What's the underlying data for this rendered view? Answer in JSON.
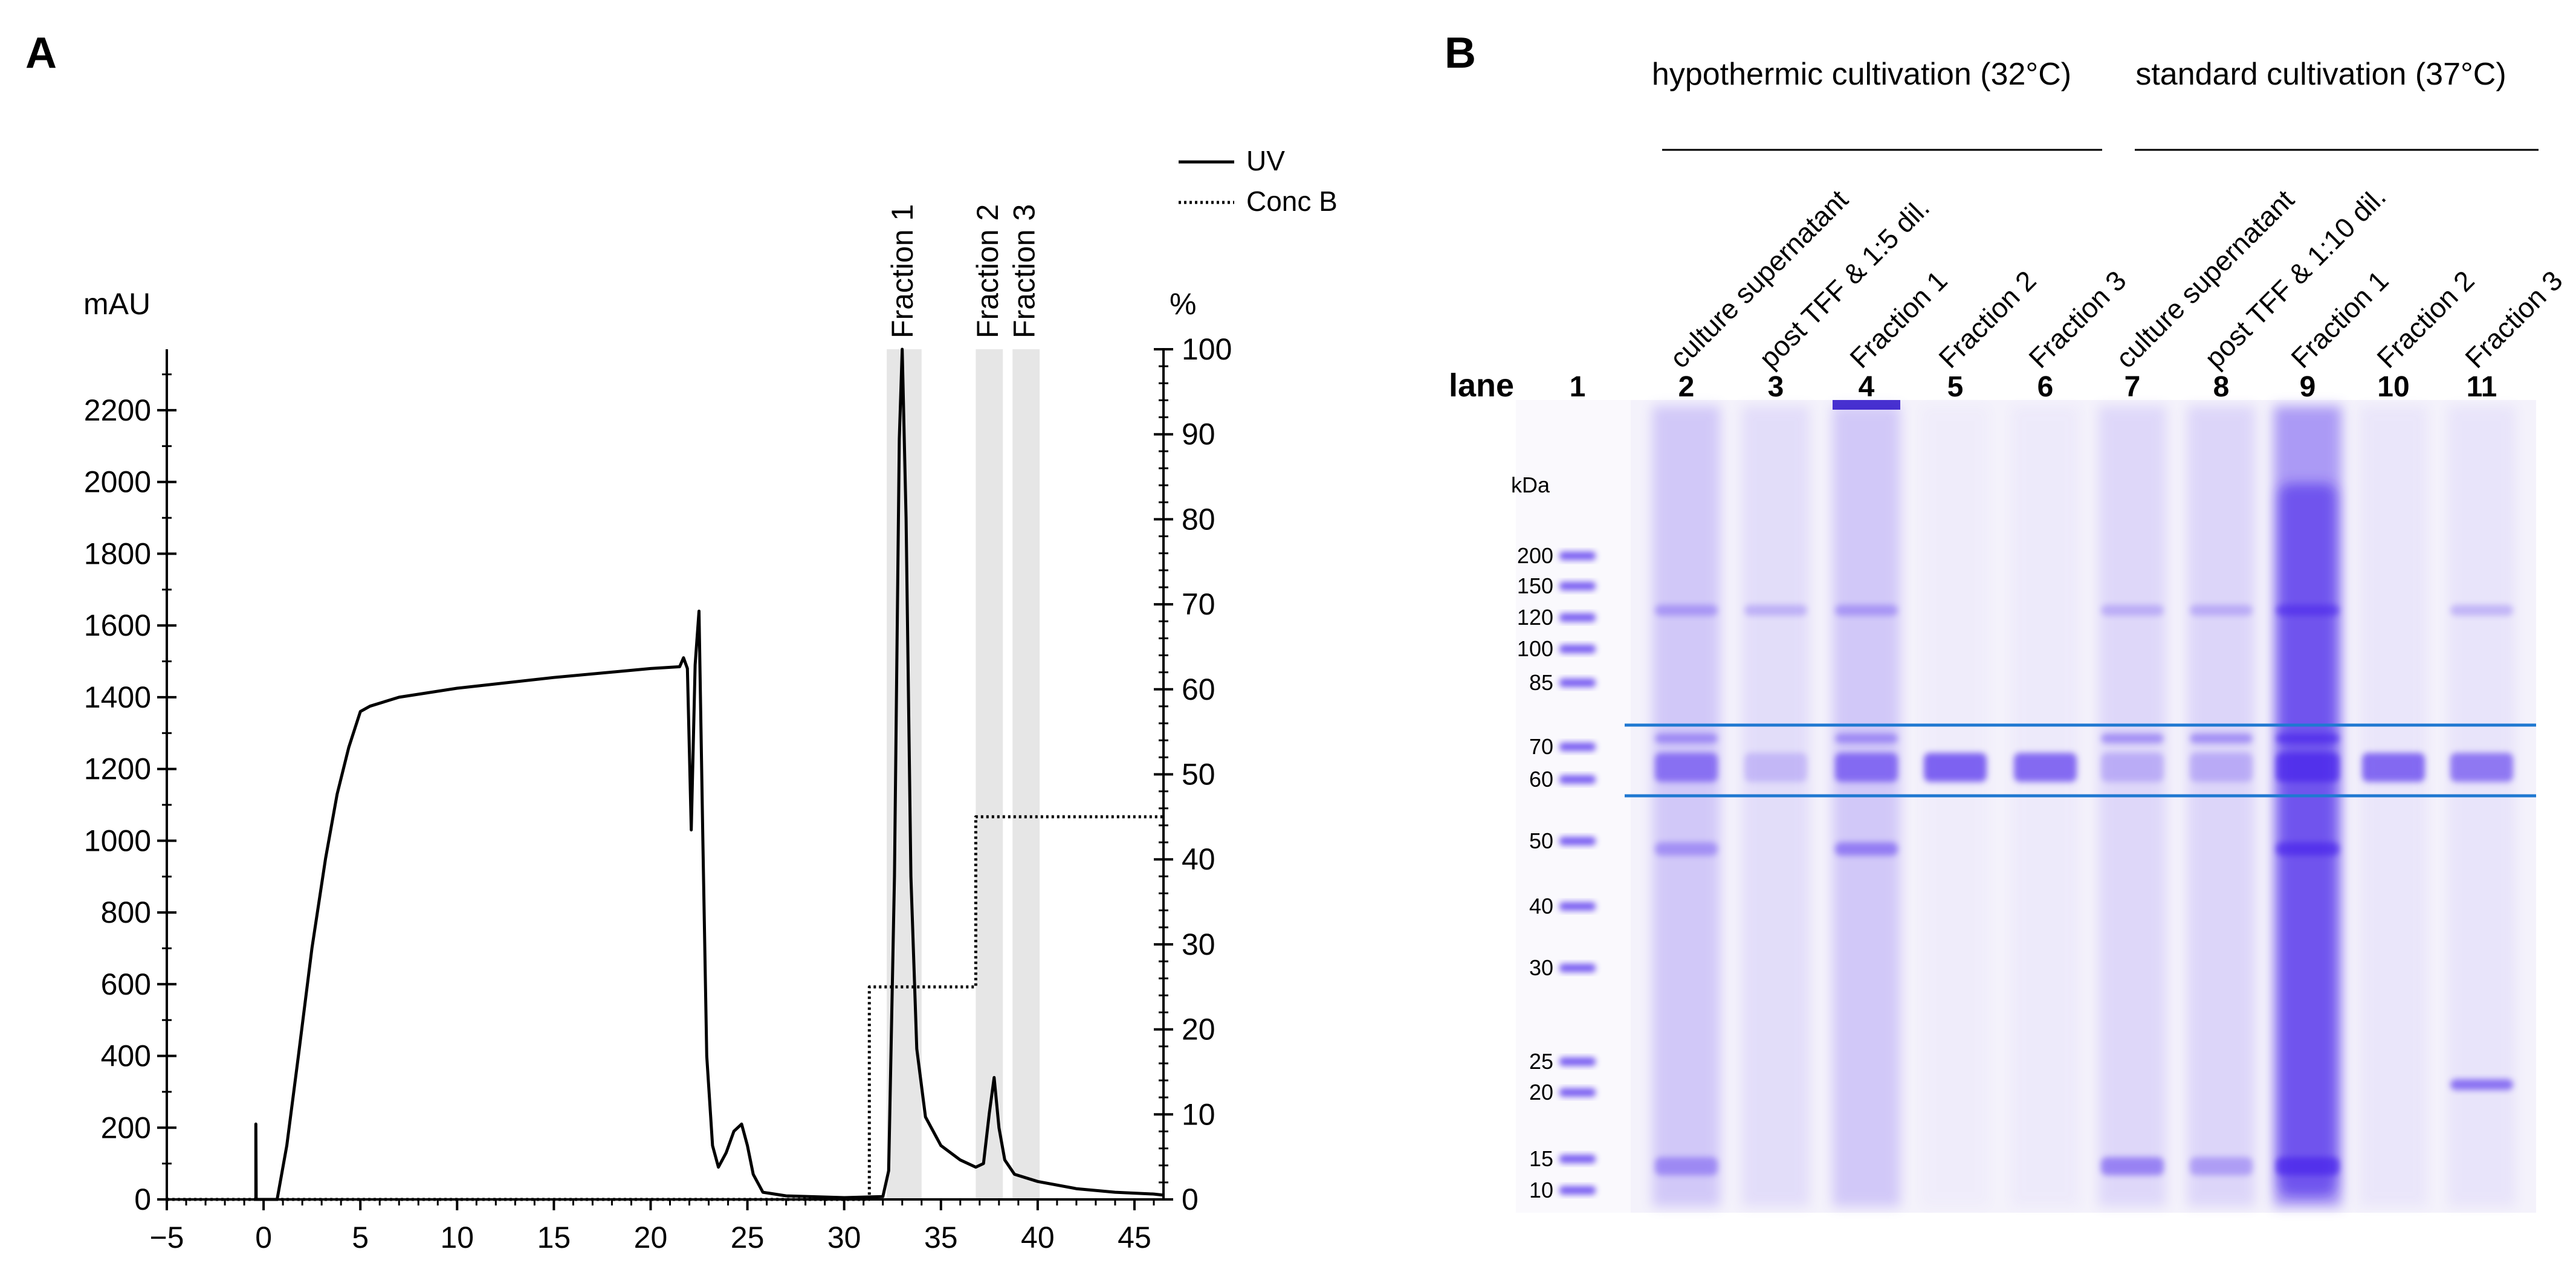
{
  "panel_a": {
    "label": "A",
    "y_left_unit": "mAU",
    "y_right_unit": "%",
    "legend": [
      "UV",
      "Conc B"
    ],
    "fractions": [
      {
        "label": "Fraction 1",
        "x_start": 32.2,
        "x_end": 34.0
      },
      {
        "label": "Fraction 2",
        "x_start": 36.8,
        "x_end": 38.2
      },
      {
        "label": "Fraction 3",
        "x_start": 38.7,
        "x_end": 40.1
      }
    ]
  },
  "chart_data": {
    "type": "line",
    "title": "",
    "xlabel": "",
    "ylabel": "mAU",
    "y2label": "%",
    "xlim": [
      -5,
      46.5
    ],
    "ylim": [
      0,
      2370
    ],
    "y2lim": [
      0,
      100
    ],
    "x_ticks": [
      -5,
      0,
      5,
      10,
      15,
      20,
      25,
      30,
      35,
      40,
      45
    ],
    "x_tick_labels": [
      "−5",
      "0",
      "5",
      "10",
      "15",
      "20",
      "25",
      "30",
      "35",
      "40",
      "45"
    ],
    "y_ticks": [
      0,
      200,
      400,
      600,
      800,
      1000,
      1200,
      1400,
      1600,
      1800,
      2000,
      2200
    ],
    "y2_ticks": [
      0,
      10,
      20,
      30,
      40,
      50,
      60,
      70,
      80,
      90,
      100
    ],
    "legend_position": "top-right",
    "series": [
      {
        "name": "UV",
        "axis": "left",
        "style": "solid",
        "points": [
          [
            -0.5,
            0
          ],
          [
            -0.4,
            0
          ],
          [
            -0.4,
            210
          ],
          [
            -0.38,
            0
          ],
          [
            0.7,
            0
          ],
          [
            1.2,
            150
          ],
          [
            1.8,
            400
          ],
          [
            2.5,
            700
          ],
          [
            3.2,
            950
          ],
          [
            3.8,
            1130
          ],
          [
            4.4,
            1260
          ],
          [
            5.0,
            1360
          ],
          [
            5.5,
            1375
          ],
          [
            7,
            1400
          ],
          [
            10,
            1425
          ],
          [
            15,
            1455
          ],
          [
            20,
            1480
          ],
          [
            21.5,
            1485
          ],
          [
            21.7,
            1510
          ],
          [
            21.9,
            1480
          ],
          [
            22.1,
            1030
          ],
          [
            22.3,
            1490
          ],
          [
            22.5,
            1640
          ],
          [
            22.7,
            1000
          ],
          [
            22.9,
            400
          ],
          [
            23.2,
            150
          ],
          [
            23.5,
            90
          ],
          [
            23.9,
            130
          ],
          [
            24.3,
            190
          ],
          [
            24.7,
            210
          ],
          [
            25.0,
            150
          ],
          [
            25.3,
            70
          ],
          [
            25.8,
            20
          ],
          [
            27,
            10
          ],
          [
            30,
            5
          ],
          [
            32,
            8
          ],
          [
            32.3,
            80
          ],
          [
            32.6,
            900
          ],
          [
            32.85,
            2120
          ],
          [
            33.0,
            2370
          ],
          [
            33.2,
            1900
          ],
          [
            33.45,
            900
          ],
          [
            33.75,
            420
          ],
          [
            34.2,
            230
          ],
          [
            35,
            150
          ],
          [
            36,
            110
          ],
          [
            36.8,
            90
          ],
          [
            37.2,
            100
          ],
          [
            37.5,
            240
          ],
          [
            37.75,
            340
          ],
          [
            38.0,
            200
          ],
          [
            38.3,
            110
          ],
          [
            38.8,
            70
          ],
          [
            40,
            50
          ],
          [
            42,
            30
          ],
          [
            44,
            20
          ],
          [
            46,
            15
          ],
          [
            46.5,
            12
          ]
        ]
      },
      {
        "name": "Conc B",
        "axis": "right",
        "style": "dotted",
        "points": [
          [
            -5,
            0
          ],
          [
            31.3,
            0
          ],
          [
            31.3,
            25
          ],
          [
            36.8,
            25
          ],
          [
            36.8,
            45
          ],
          [
            46.5,
            45
          ]
        ]
      }
    ]
  },
  "panel_b": {
    "label": "B",
    "group_1": "hypothermic cultivation (32°C)",
    "group_2": "standard cultivation (37°C)",
    "lane_header": "lane",
    "lane_numbers": [
      "1",
      "2",
      "3",
      "4",
      "5",
      "6",
      "7",
      "8",
      "9",
      "10",
      "11"
    ],
    "lane_labels": [
      "culture supernatant",
      "post TFF & 1:5 dil.",
      "Fraction 1",
      "Fraction 2",
      "Fraction 3",
      "culture supernatant",
      "post TFF & 1:10 dil.",
      "Fraction 1",
      "Fraction 2",
      "Fraction 3"
    ],
    "kda_unit": "kDa",
    "marker_kda": [
      "200",
      "150",
      "120",
      "100",
      "85",
      "70",
      "60",
      "50",
      "40",
      "30",
      "25",
      "20",
      "15",
      "10"
    ],
    "colors": {
      "stain": "#6b4cf0",
      "guide_line": "#1f78d1",
      "fraction_shade": "#e6e6e6"
    }
  }
}
